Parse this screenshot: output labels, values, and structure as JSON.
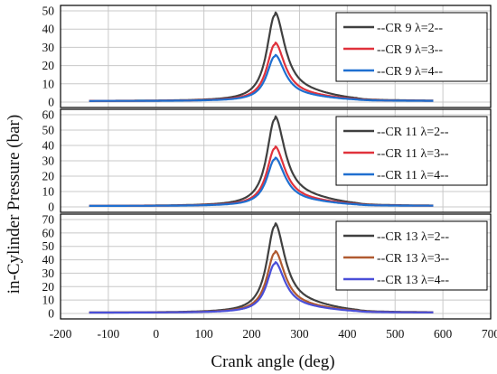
{
  "chart_data": {
    "type": "line",
    "xlabel": "Crank angle (deg)",
    "ylabel": "in-Cylinder Pressure (bar)",
    "xlim": [
      -200,
      700
    ],
    "xticks": [
      "-200",
      "-100",
      "0",
      "100",
      "200",
      "300",
      "400",
      "500",
      "600",
      "700"
    ],
    "grid": true,
    "legend_position": "top-right",
    "panels": [
      {
        "ylim": [
          0,
          50
        ],
        "yticks": [
          "0",
          "10",
          "20",
          "30",
          "40",
          "50"
        ],
        "series": [
          {
            "name": "--CR 9 λ=2--",
            "color": "#404040",
            "peak": 47.5
          },
          {
            "name": "--CR 9 λ=3--",
            "color": "#e0323c",
            "peak": 31.5
          },
          {
            "name": "--CR 9 λ=4--",
            "color": "#1f6fd0",
            "peak": 25
          }
        ]
      },
      {
        "ylim": [
          0,
          60
        ],
        "yticks": [
          "0",
          "10",
          "20",
          "30",
          "40",
          "50",
          "60"
        ],
        "series": [
          {
            "name": "--CR 11 λ=2--",
            "color": "#404040",
            "peak": 57
          },
          {
            "name": "--CR 11 λ=3--",
            "color": "#e0323c",
            "peak": 38
          },
          {
            "name": "--CR 11 λ=4--",
            "color": "#1f6fd0",
            "peak": 31
          }
        ]
      },
      {
        "ylim": [
          0,
          70
        ],
        "yticks": [
          "0",
          "10",
          "20",
          "30",
          "40",
          "50",
          "60",
          "70"
        ],
        "series": [
          {
            "name": "--CR 13 λ=2--",
            "color": "#404040",
            "peak": 65
          },
          {
            "name": "--CR 13 λ=3--",
            "color": "#b05a30",
            "peak": 45
          },
          {
            "name": "--CR 13 λ=4--",
            "color": "#4a4fd8",
            "peak": 37
          }
        ]
      }
    ],
    "x_range_plotted": [
      -140,
      580
    ],
    "peak_angle": 248
  }
}
